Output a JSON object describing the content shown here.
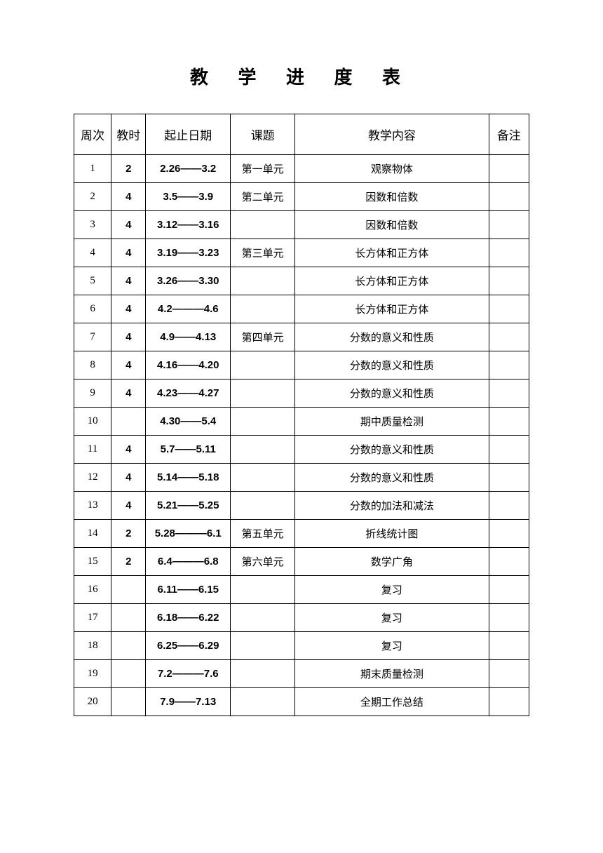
{
  "title": "教 学 进 度 表",
  "columns": [
    "周次",
    "教时",
    "起止日期",
    "课题",
    "教学内容",
    "备注"
  ],
  "rows": [
    {
      "week": "1",
      "hours": "2",
      "date": "2.26——3.2",
      "topic": "第一单元",
      "content": "观察物体",
      "note": ""
    },
    {
      "week": "2",
      "hours": "4",
      "date": "3.5——3.9",
      "topic": "第二单元",
      "content": "因数和倍数",
      "note": ""
    },
    {
      "week": "3",
      "hours": "4",
      "date": "3.12——3.16",
      "topic": "",
      "content": "因数和倍数",
      "note": ""
    },
    {
      "week": "4",
      "hours": "4",
      "date": "3.19——3.23",
      "topic": "第三单元",
      "content": "长方体和正方体",
      "note": ""
    },
    {
      "week": "5",
      "hours": "4",
      "date": "3.26——3.30",
      "topic": "",
      "content": "长方体和正方体",
      "note": ""
    },
    {
      "week": "6",
      "hours": "4",
      "date": "4.2———4.6",
      "topic": "",
      "content": "长方体和正方体",
      "note": ""
    },
    {
      "week": "7",
      "hours": "4",
      "date": "4.9——4.13",
      "topic": "第四单元",
      "content": "分数的意义和性质",
      "note": ""
    },
    {
      "week": "8",
      "hours": "4",
      "date": "4.16——4.20",
      "topic": "",
      "content": "分数的意义和性质",
      "note": ""
    },
    {
      "week": "9",
      "hours": "4",
      "date": "4.23——4.27",
      "topic": "",
      "content": "分数的意义和性质",
      "note": ""
    },
    {
      "week": "10",
      "hours": "",
      "date": "4.30——5.4",
      "topic": "",
      "content": "期中质量检测",
      "note": ""
    },
    {
      "week": "11",
      "hours": "4",
      "date": "5.7——5.11",
      "topic": "",
      "content": "分数的意义和性质",
      "note": ""
    },
    {
      "week": "12",
      "hours": "4",
      "date": "5.14——5.18",
      "topic": "",
      "content": "分数的意义和性质",
      "note": ""
    },
    {
      "week": "13",
      "hours": "4",
      "date": "5.21——5.25",
      "topic": "",
      "content": "分数的加法和减法",
      "note": ""
    },
    {
      "week": "14",
      "hours": "2",
      "date": "5.28———6.1",
      "topic": "第五单元",
      "content": "折线统计图",
      "note": ""
    },
    {
      "week": "15",
      "hours": "2",
      "date": "6.4———6.8",
      "topic": "第六单元",
      "content": "数学广角",
      "note": ""
    },
    {
      "week": "16",
      "hours": "",
      "date": "6.11——6.15",
      "topic": "",
      "content": "复习",
      "note": ""
    },
    {
      "week": "17",
      "hours": "",
      "date": "6.18——6.22",
      "topic": "",
      "content": "复习",
      "note": ""
    },
    {
      "week": "18",
      "hours": "",
      "date": "6.25——6.29",
      "topic": "",
      "content": "复习",
      "note": ""
    },
    {
      "week": "19",
      "hours": "",
      "date": "7.2———7.6",
      "topic": "",
      "content": "期末质量检测",
      "note": ""
    },
    {
      "week": "20",
      "hours": "",
      "date": "7.9——7.13",
      "topic": "",
      "content": "全期工作总结",
      "note": ""
    }
  ],
  "styling": {
    "background_color": "#ffffff",
    "border_color": "#000000",
    "text_color": "#000000",
    "title_fontsize": 26,
    "header_fontsize": 17,
    "cell_fontsize": 15,
    "header_row_height": 58,
    "data_row_height": 40,
    "column_widths": {
      "week": 52,
      "hours": 48,
      "date": 118,
      "topic": 90,
      "content": 270,
      "note": 56
    }
  }
}
